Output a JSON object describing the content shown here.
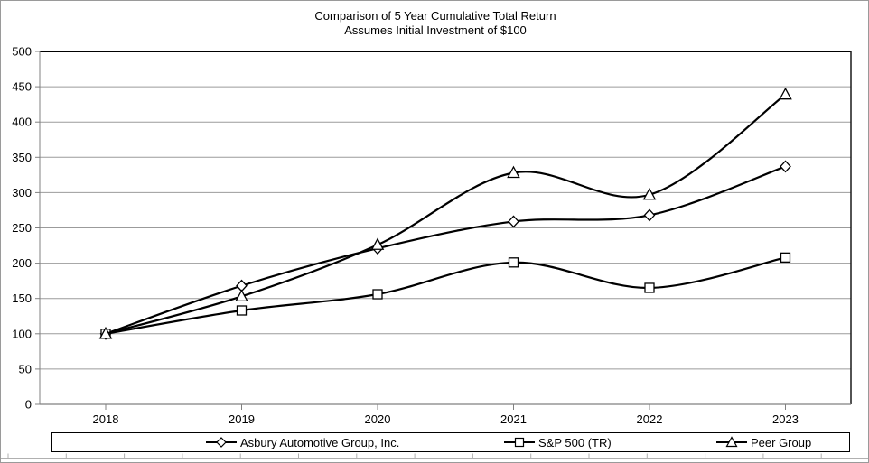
{
  "title": {
    "line1": "Comparison of 5 Year Cumulative Total Return",
    "line2": "Assumes Initial Investment of $100"
  },
  "chart_data": {
    "type": "line",
    "smoothed": true,
    "categories": [
      "2018",
      "2019",
      "2020",
      "2021",
      "2022",
      "2023"
    ],
    "series": [
      {
        "name": "Asbury Automotive Group, Inc.",
        "marker": "diamond",
        "values": [
          100,
          168,
          221,
          259,
          268,
          337
        ]
      },
      {
        "name": "S&P 500 (TR)",
        "marker": "square",
        "values": [
          100,
          133,
          156,
          201,
          165,
          208
        ]
      },
      {
        "name": "Peer Group",
        "marker": "triangle",
        "values": [
          100,
          153,
          226,
          328,
          297,
          439
        ]
      }
    ],
    "ylim": [
      0,
      500
    ],
    "y_tick_step": 50,
    "y_tick_labels": [
      "0",
      "50",
      "100",
      "150",
      "200",
      "250",
      "300",
      "350",
      "400",
      "450",
      "500"
    ],
    "grid": true,
    "legend_position": "bottom",
    "colors": {
      "line": "#000000",
      "marker_fill": "#ffffff",
      "gridline": "#9b9b9b",
      "plot_border_top": "#000000",
      "plot_border_right": "#1a1a1a",
      "axis": "#808080",
      "text": "#000000",
      "ruler": "#b0b0b0"
    }
  }
}
